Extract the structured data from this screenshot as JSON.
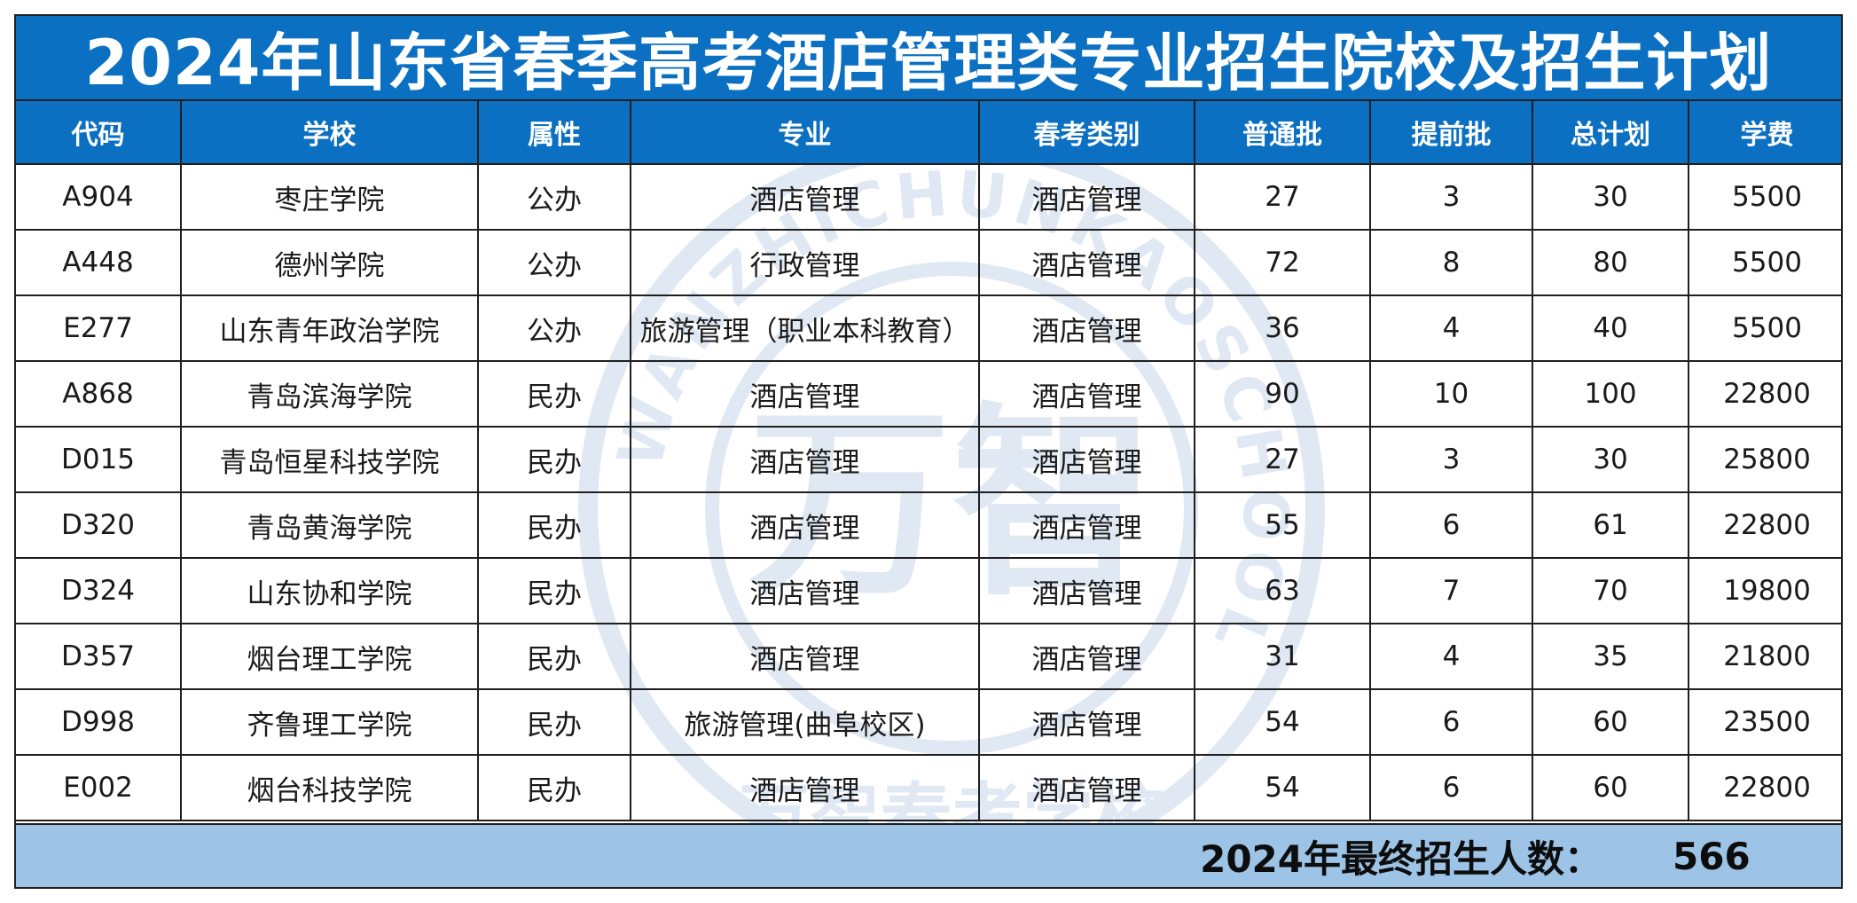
{
  "title": "2024年山东省春季高考酒店管理类专业招生院校及招生计划",
  "headers": [
    "代码",
    "学校",
    "属性",
    "专业",
    "春考类别",
    "普通批",
    "提前批",
    "总计划",
    "学费"
  ],
  "rows": [
    [
      "A904",
      "枣庄学院",
      "公办",
      "酒店管理",
      "酒店管理",
      "27",
      "3",
      "30",
      "5500"
    ],
    [
      "A448",
      "德州学院",
      "公办",
      "行政管理",
      "酒店管理",
      "72",
      "8",
      "80",
      "5500"
    ],
    [
      "E277",
      "山东青年政治学院",
      "公办",
      "旅游管理（职业本科教育）",
      "酒店管理",
      "36",
      "4",
      "40",
      "5500"
    ],
    [
      "A868",
      "青岛滨海学院",
      "民办",
      "酒店管理",
      "酒店管理",
      "90",
      "10",
      "100",
      "22800"
    ],
    [
      "D015",
      "青岛恒星科技学院",
      "民办",
      "酒店管理",
      "酒店管理",
      "27",
      "3",
      "30",
      "25800"
    ],
    [
      "D320",
      "青岛黄海学院",
      "民办",
      "酒店管理",
      "酒店管理",
      "55",
      "6",
      "61",
      "22800"
    ],
    [
      "D324",
      "山东协和学院",
      "民办",
      "酒店管理",
      "酒店管理",
      "63",
      "7",
      "70",
      "19800"
    ],
    [
      "D357",
      "烟台理工学院",
      "民办",
      "酒店管理",
      "酒店管理",
      "31",
      "4",
      "35",
      "21800"
    ],
    [
      "D998",
      "齐鲁理工学院",
      "民办",
      "旅游管理(曲阜校区)",
      "酒店管理",
      "54",
      "6",
      "60",
      "23500"
    ],
    [
      "E002",
      "烟台科技学院",
      "民办",
      "酒店管理",
      "酒店管理",
      "54",
      "6",
      "60",
      "22800"
    ]
  ],
  "footer": {
    "label": "2024年最终招生人数：",
    "total": "566"
  },
  "watermark": {
    "ring_text": "WANZHICHUNKAOSCHOOL",
    "bottom_text": "万智春考学校",
    "center_text": "万智"
  },
  "colors": {
    "header_blue": "#0b70c2",
    "footer_blue": "#9dc3e6",
    "grid_line": "#1f1f1f"
  }
}
